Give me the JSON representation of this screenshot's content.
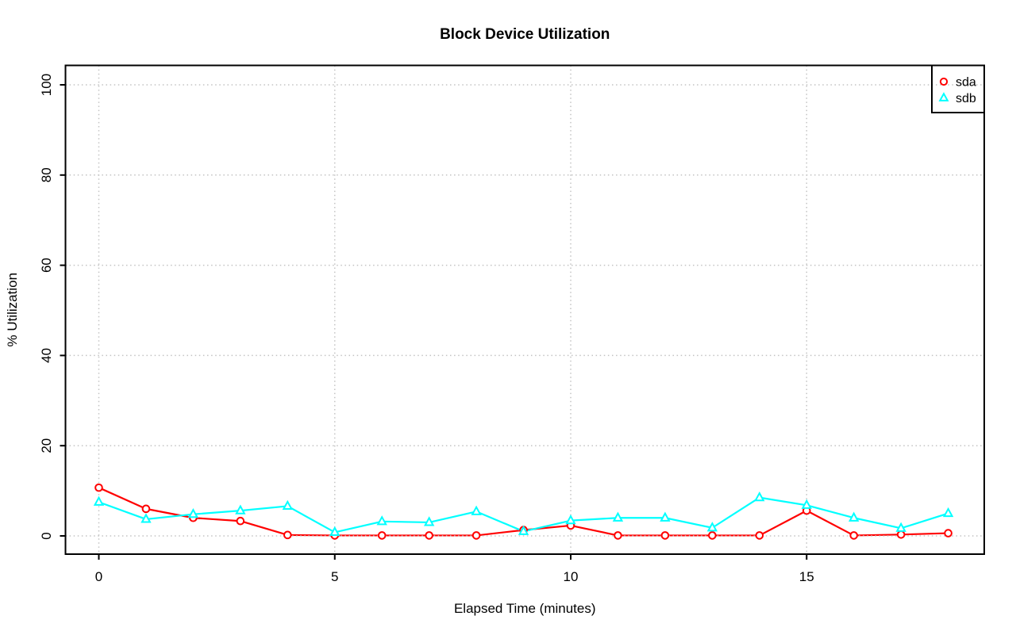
{
  "page": {
    "background": "#FFFFFF"
  },
  "chart_data": {
    "type": "line",
    "title": "Block Device Utilization",
    "xlabel": "Elapsed Time (minutes)",
    "ylabel": "% Utilization",
    "x": [
      0,
      1,
      2,
      3,
      4,
      5,
      6,
      7,
      8,
      9,
      10,
      11,
      12,
      13,
      14,
      15,
      16,
      17,
      18
    ],
    "series": [
      {
        "name": "sda",
        "color": "#FF0000",
        "marker": "circle",
        "values": [
          10.7,
          6.0,
          4.0,
          3.3,
          0.2,
          0.1,
          0.1,
          0.1,
          0.1,
          1.3,
          2.3,
          0.1,
          0.1,
          0.1,
          0.1,
          5.6,
          0.1,
          0.3,
          0.6
        ]
      },
      {
        "name": "sdb",
        "color": "#00FFFF",
        "marker": "triangle",
        "values": [
          7.5,
          3.7,
          4.8,
          5.6,
          6.6,
          0.8,
          3.2,
          3.0,
          5.4,
          1.0,
          3.4,
          4.0,
          4.0,
          1.8,
          8.5,
          6.8,
          4.0,
          1.7,
          5.0
        ]
      }
    ],
    "xticks": [
      0,
      5,
      10,
      15
    ],
    "yticks": [
      0,
      20,
      40,
      60,
      80,
      100
    ],
    "xlim": [
      0,
      18
    ],
    "ylim": [
      0,
      100
    ],
    "grid": true,
    "grid_style": "dotted",
    "legend_position": "topright",
    "colors": {
      "grid": "#C3C3C3",
      "axis": "#000000",
      "background": "#FFFFFF"
    }
  }
}
